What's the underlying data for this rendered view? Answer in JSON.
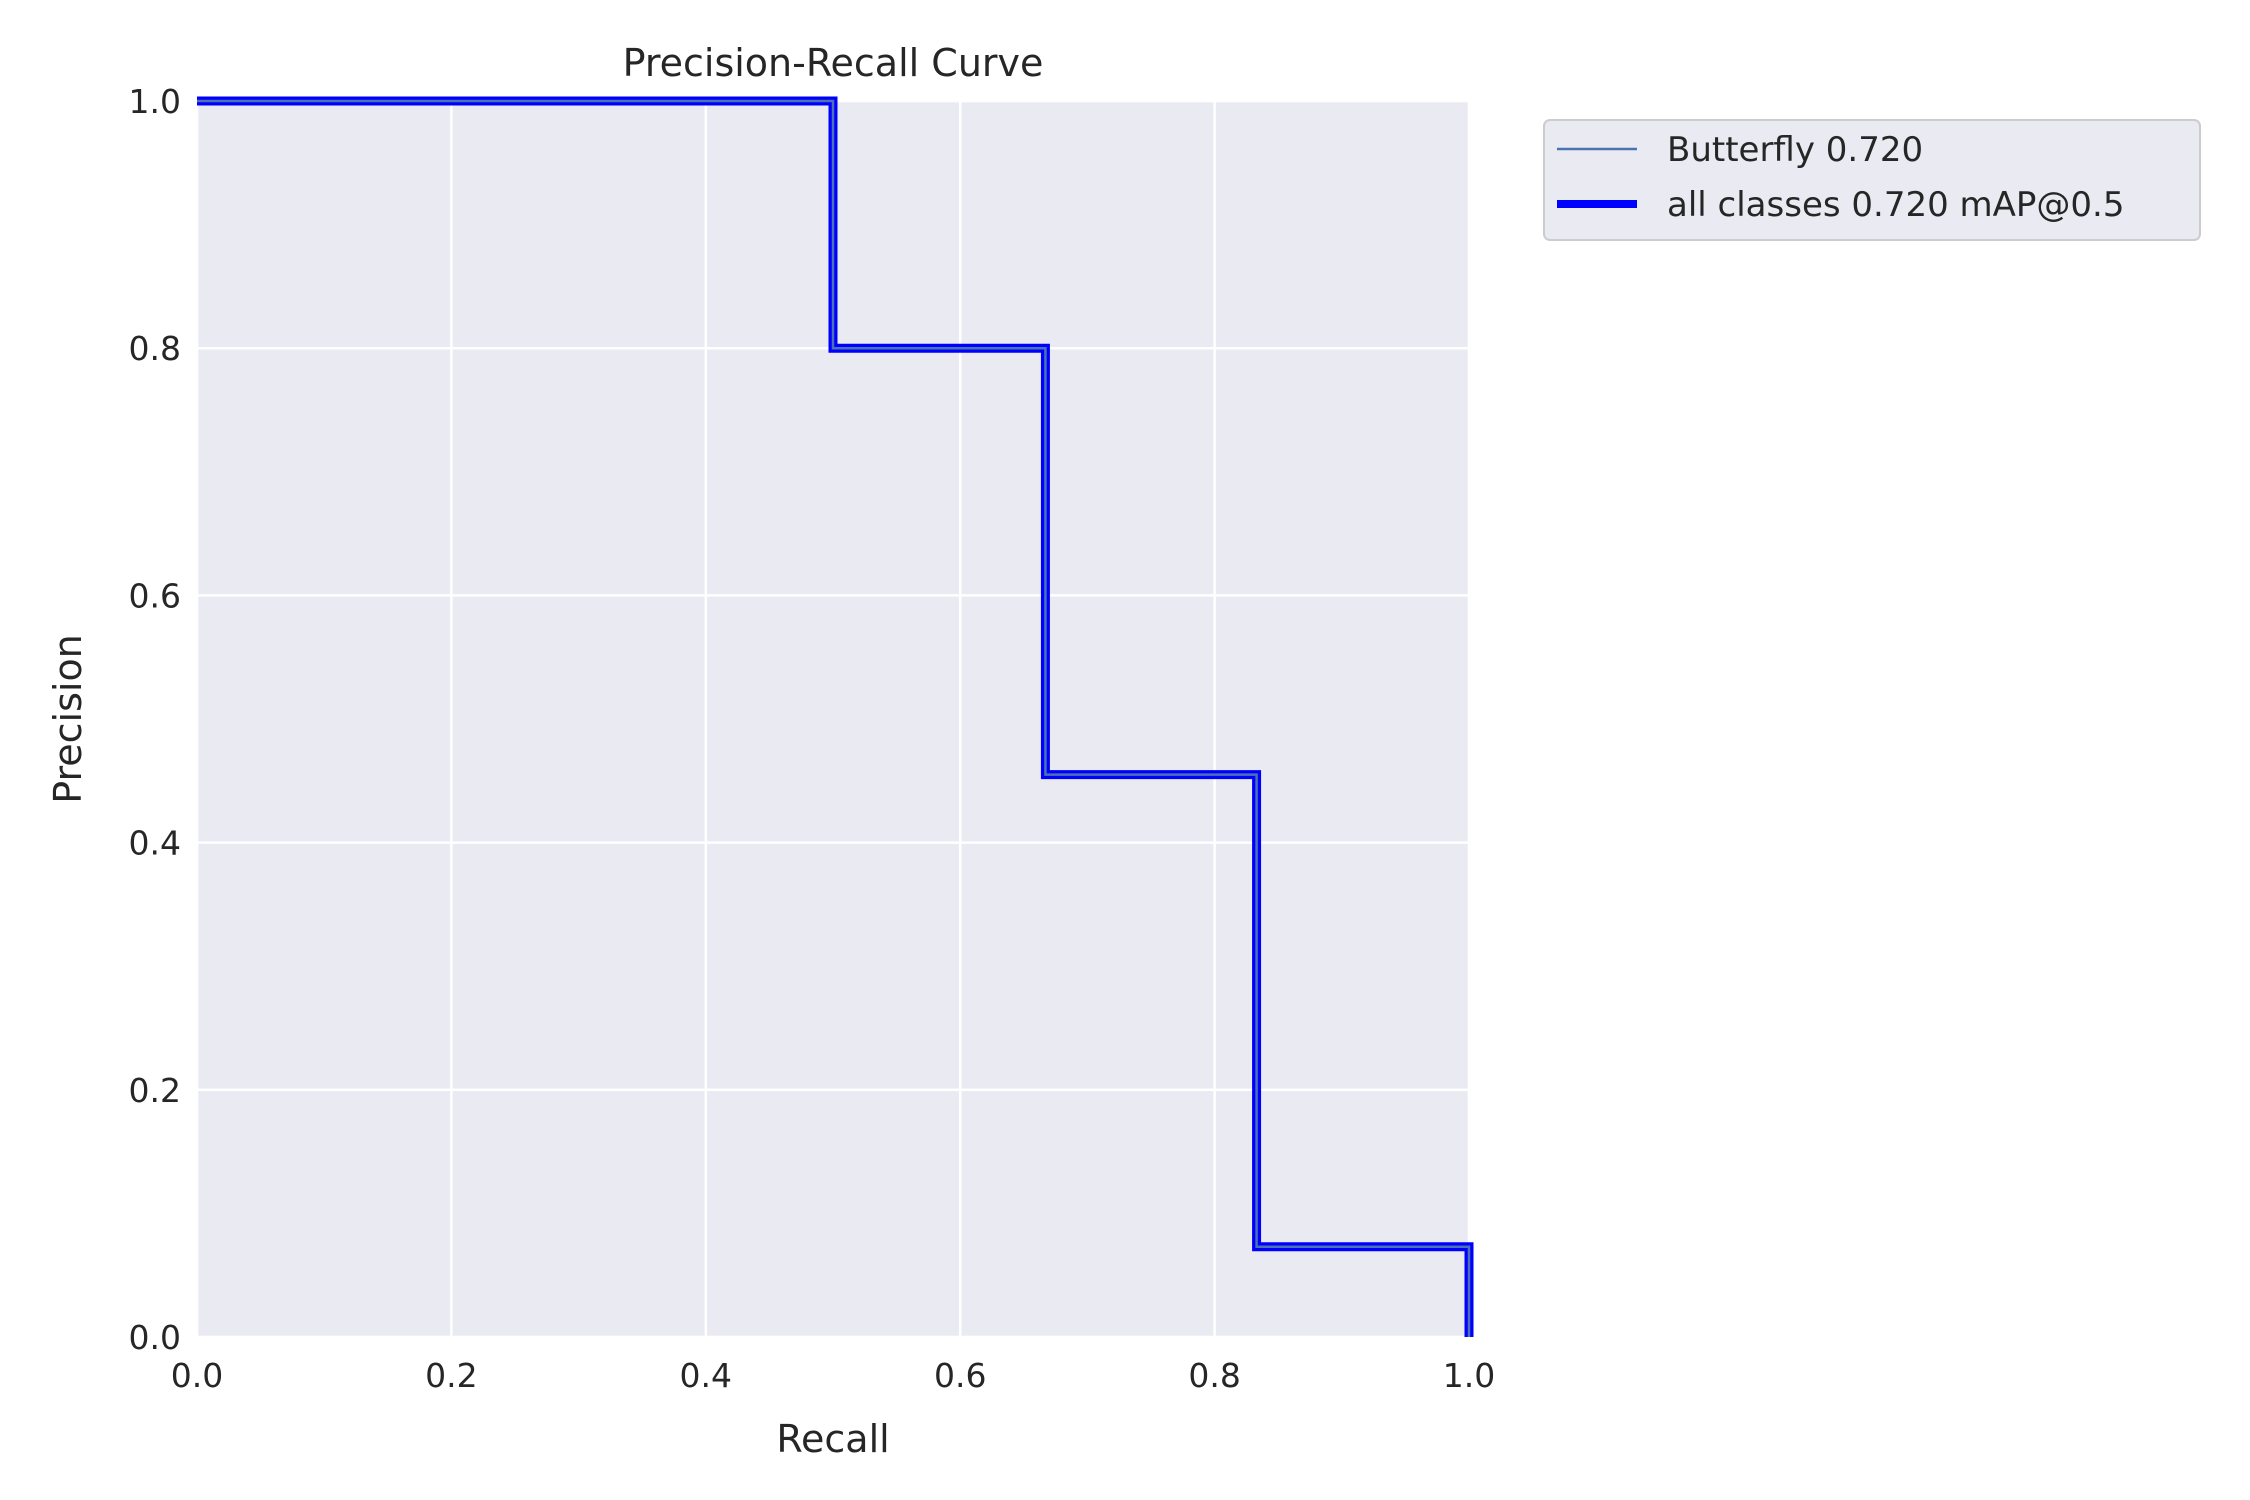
{
  "chart_data": {
    "type": "line",
    "title": "Precision-Recall Curve",
    "xlabel": "Recall",
    "ylabel": "Precision",
    "xlim": [
      0,
      1
    ],
    "ylim": [
      0,
      1
    ],
    "xticks": [
      "0.0",
      "0.2",
      "0.4",
      "0.6",
      "0.8",
      "1.0"
    ],
    "yticks": [
      "0.0",
      "0.2",
      "0.4",
      "0.6",
      "0.8",
      "1.0"
    ],
    "grid": true,
    "legend_position": "outside upper right",
    "background_color": "#eaeaf2",
    "series": [
      {
        "name": "Butterfly 0.720",
        "color": "#4c72b0",
        "line_width": "thin",
        "x": [
          0.0,
          0.5,
          0.5,
          0.667,
          0.667,
          0.833,
          0.833,
          1.0,
          1.0
        ],
        "y": [
          1.0,
          1.0,
          0.8,
          0.8,
          0.455,
          0.455,
          0.073,
          0.073,
          0.0
        ]
      },
      {
        "name": "all classes 0.720 mAP@0.5",
        "color": "#0000ff",
        "line_width": "thick",
        "x": [
          0.0,
          0.5,
          0.5,
          0.667,
          0.667,
          0.833,
          0.833,
          1.0,
          1.0
        ],
        "y": [
          1.0,
          1.0,
          0.8,
          0.8,
          0.455,
          0.455,
          0.073,
          0.073,
          0.0
        ]
      }
    ]
  }
}
